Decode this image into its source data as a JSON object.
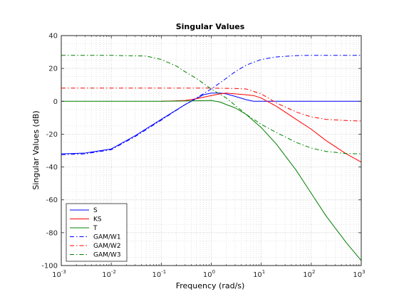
{
  "chart_data": {
    "type": "line",
    "title": "Singular Values",
    "xlabel": "Frequency (rad/s)",
    "ylabel": "Singular Values (dB)",
    "xscale": "log",
    "xlim": [
      0.001,
      1000
    ],
    "ylim": [
      -100,
      40
    ],
    "grid": "major and minor dotted",
    "legend_position": "bottom-left",
    "xticks": [
      {
        "value": 0.001,
        "base": "10",
        "exp": "-3"
      },
      {
        "value": 0.01,
        "base": "10",
        "exp": "-2"
      },
      {
        "value": 0.1,
        "base": "10",
        "exp": "-1"
      },
      {
        "value": 1,
        "base": "10",
        "exp": "0"
      },
      {
        "value": 10,
        "base": "10",
        "exp": "1"
      },
      {
        "value": 100,
        "base": "10",
        "exp": "2"
      },
      {
        "value": 1000,
        "base": "10",
        "exp": "3"
      }
    ],
    "yticks": [
      40,
      20,
      0,
      -20,
      -40,
      -60,
      -80,
      -100
    ],
    "series": [
      {
        "name": "S",
        "color": "#0000ff",
        "dash": "solid",
        "x": [
          0.001,
          0.003,
          0.01,
          0.03,
          0.1,
          0.3,
          0.7,
          1,
          1.5,
          2,
          3,
          5,
          7,
          10,
          20,
          100,
          1000
        ],
        "y": [
          -32,
          -31.5,
          -29,
          -21,
          -11,
          -2,
          4,
          5,
          5,
          4.5,
          3,
          1,
          0,
          0,
          0,
          0,
          0
        ]
      },
      {
        "name": "KS",
        "color": "#ff0000",
        "dash": "solid",
        "x": [
          0.1,
          0.2,
          0.3,
          0.5,
          1,
          1.5,
          2,
          3,
          5,
          7,
          10,
          20,
          50,
          100,
          200,
          500,
          1000
        ],
        "y": [
          0,
          0.3,
          0.5,
          1.5,
          3.5,
          4.5,
          5,
          4.5,
          4,
          3.5,
          2,
          -3,
          -11,
          -17,
          -24,
          -32,
          -37
        ]
      },
      {
        "name": "T",
        "color": "#008000",
        "dash": "solid",
        "x": [
          0.001,
          0.1,
          0.5,
          1,
          1.5,
          2,
          3,
          5,
          10,
          20,
          50,
          100,
          200,
          500,
          1000
        ],
        "y": [
          0,
          0,
          0.3,
          0.5,
          -0.5,
          -2,
          -4,
          -8,
          -16,
          -26,
          -42,
          -56,
          -70,
          -86,
          -97
        ]
      },
      {
        "name": "GAM/W1",
        "color": "#0000ff",
        "dash": "dashdot",
        "x": [
          0.001,
          0.003,
          0.01,
          0.03,
          0.1,
          0.3,
          0.5,
          1,
          2,
          3,
          5,
          10,
          20,
          50,
          100,
          1000
        ],
        "y": [
          -32.5,
          -32,
          -29.5,
          -21.5,
          -11.5,
          -2,
          2,
          7.5,
          14,
          18,
          22,
          25.5,
          27,
          27.8,
          28,
          28
        ]
      },
      {
        "name": "GAM/W2",
        "color": "#ff0000",
        "dash": "dashdot",
        "x": [
          0.001,
          1,
          3,
          5,
          10,
          20,
          50,
          100,
          200,
          500,
          1000
        ],
        "y": [
          8,
          8,
          7.8,
          7.5,
          4.5,
          -1,
          -6.5,
          -9.5,
          -11,
          -11.7,
          -12
        ]
      },
      {
        "name": "GAM/W3",
        "color": "#008000",
        "dash": "dashdot",
        "x": [
          0.001,
          0.01,
          0.05,
          0.1,
          0.2,
          0.3,
          0.5,
          1,
          2,
          5,
          10,
          20,
          50,
          100,
          200,
          500,
          1000
        ],
        "y": [
          28,
          28,
          27.5,
          25.5,
          21.5,
          18,
          14,
          7.5,
          2,
          -8,
          -14,
          -19,
          -25,
          -28.5,
          -30.5,
          -31.8,
          -32
        ]
      }
    ]
  }
}
